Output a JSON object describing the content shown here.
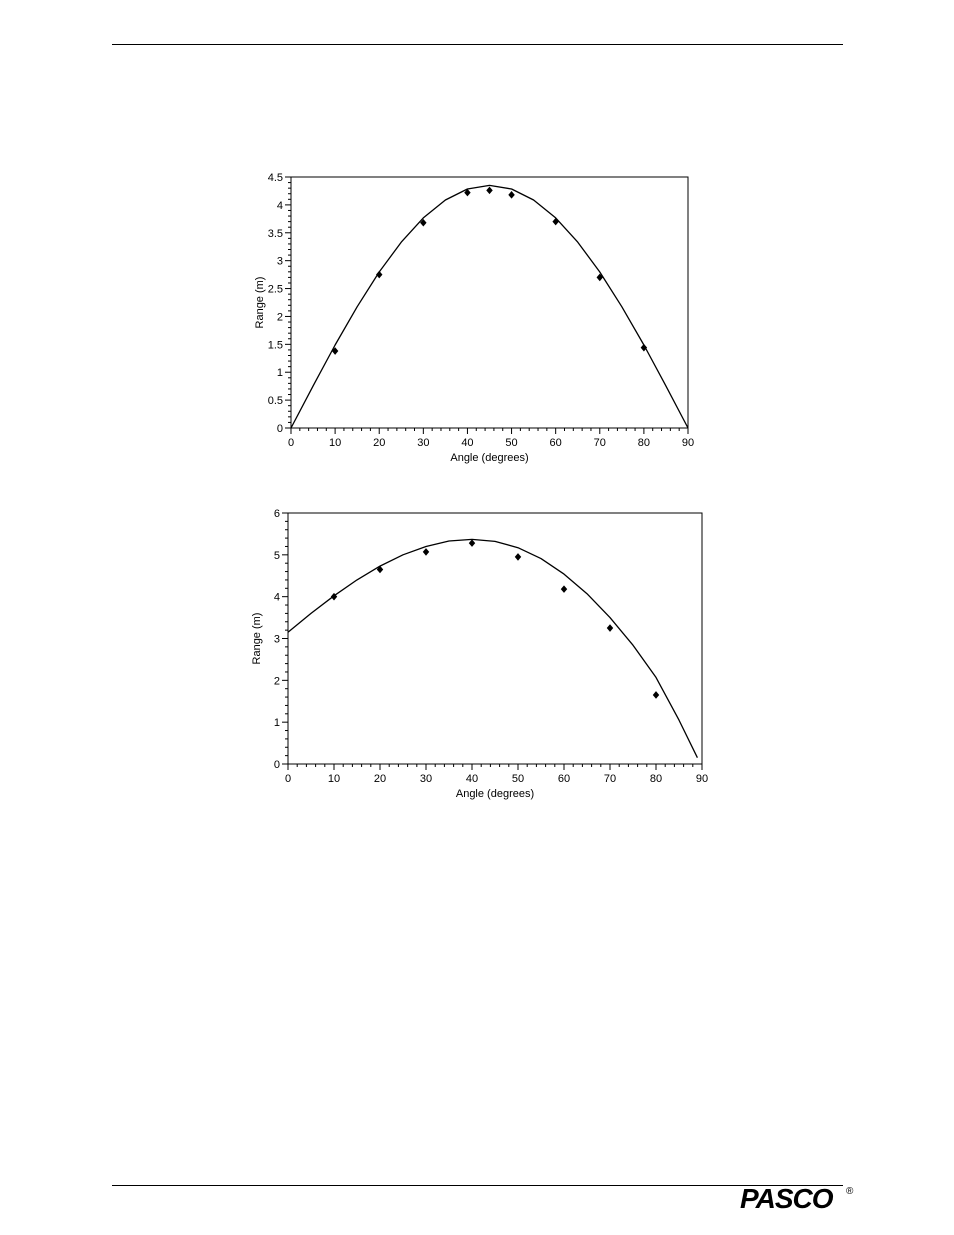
{
  "chart_data": [
    {
      "type": "scatter",
      "title": "",
      "xlabel": "Angle (degrees)",
      "ylabel": "Range (m)",
      "xlim": [
        0,
        90
      ],
      "ylim": [
        0,
        4.5
      ],
      "x_ticks": [
        "0",
        "10",
        "20",
        "30",
        "40",
        "50",
        "60",
        "70",
        "80",
        "90"
      ],
      "y_ticks": [
        "0",
        "0.5",
        "1",
        "1.5",
        "2",
        "2.5",
        "3",
        "3.5",
        "4",
        "4.5"
      ],
      "grid": false,
      "legend": "none",
      "series": [
        {
          "kind": "points",
          "marker": "diamond",
          "x": [
            10,
            20,
            30,
            40,
            45,
            50,
            60,
            70,
            80
          ],
          "y": [
            1.38,
            2.75,
            3.68,
            4.22,
            4.26,
            4.18,
            3.7,
            2.7,
            1.44
          ]
        },
        {
          "kind": "fit-curve",
          "model": "R = 4.35 * sin(2θ)",
          "x": [
            0,
            5,
            10,
            15,
            20,
            25,
            30,
            35,
            40,
            45,
            50,
            55,
            60,
            65,
            70,
            75,
            80,
            85,
            90
          ],
          "y": [
            0,
            0.755,
            1.488,
            2.175,
            2.796,
            3.332,
            3.767,
            4.088,
            4.284,
            4.35,
            4.284,
            4.088,
            3.767,
            3.332,
            2.796,
            2.175,
            1.488,
            0.755,
            0
          ]
        }
      ],
      "colors": {
        "line": "#000000",
        "marker": "#000000"
      }
    },
    {
      "type": "scatter",
      "title": "",
      "xlabel": "Angle (degrees)",
      "ylabel": "Range (m)",
      "xlim": [
        0,
        90
      ],
      "ylim": [
        0,
        6
      ],
      "x_ticks": [
        "0",
        "10",
        "20",
        "30",
        "40",
        "50",
        "60",
        "70",
        "80",
        "90"
      ],
      "y_ticks": [
        "0",
        "1",
        "2",
        "3",
        "4",
        "5",
        "6"
      ],
      "grid": false,
      "legend": "none",
      "series": [
        {
          "kind": "points",
          "marker": "diamond",
          "x": [
            10,
            20,
            30,
            40,
            50,
            60,
            70,
            80
          ],
          "y": [
            4.0,
            4.65,
            5.07,
            5.28,
            4.95,
            4.18,
            3.25,
            1.65
          ]
        },
        {
          "kind": "fit-curve",
          "model": "projectile range from elevated launch",
          "x": [
            0,
            5,
            10,
            15,
            20,
            25,
            30,
            35,
            40,
            45,
            50,
            55,
            60,
            65,
            70,
            75,
            80,
            85,
            89
          ],
          "y": [
            3.15,
            3.6,
            4.02,
            4.4,
            4.73,
            5.0,
            5.2,
            5.33,
            5.37,
            5.32,
            5.17,
            4.91,
            4.54,
            4.07,
            3.5,
            2.84,
            2.07,
            1.05,
            0.15
          ]
        }
      ],
      "colors": {
        "line": "#000000",
        "marker": "#000000"
      }
    }
  ],
  "footer": {
    "logo_text": "PASCO",
    "registered_mark": "®"
  }
}
